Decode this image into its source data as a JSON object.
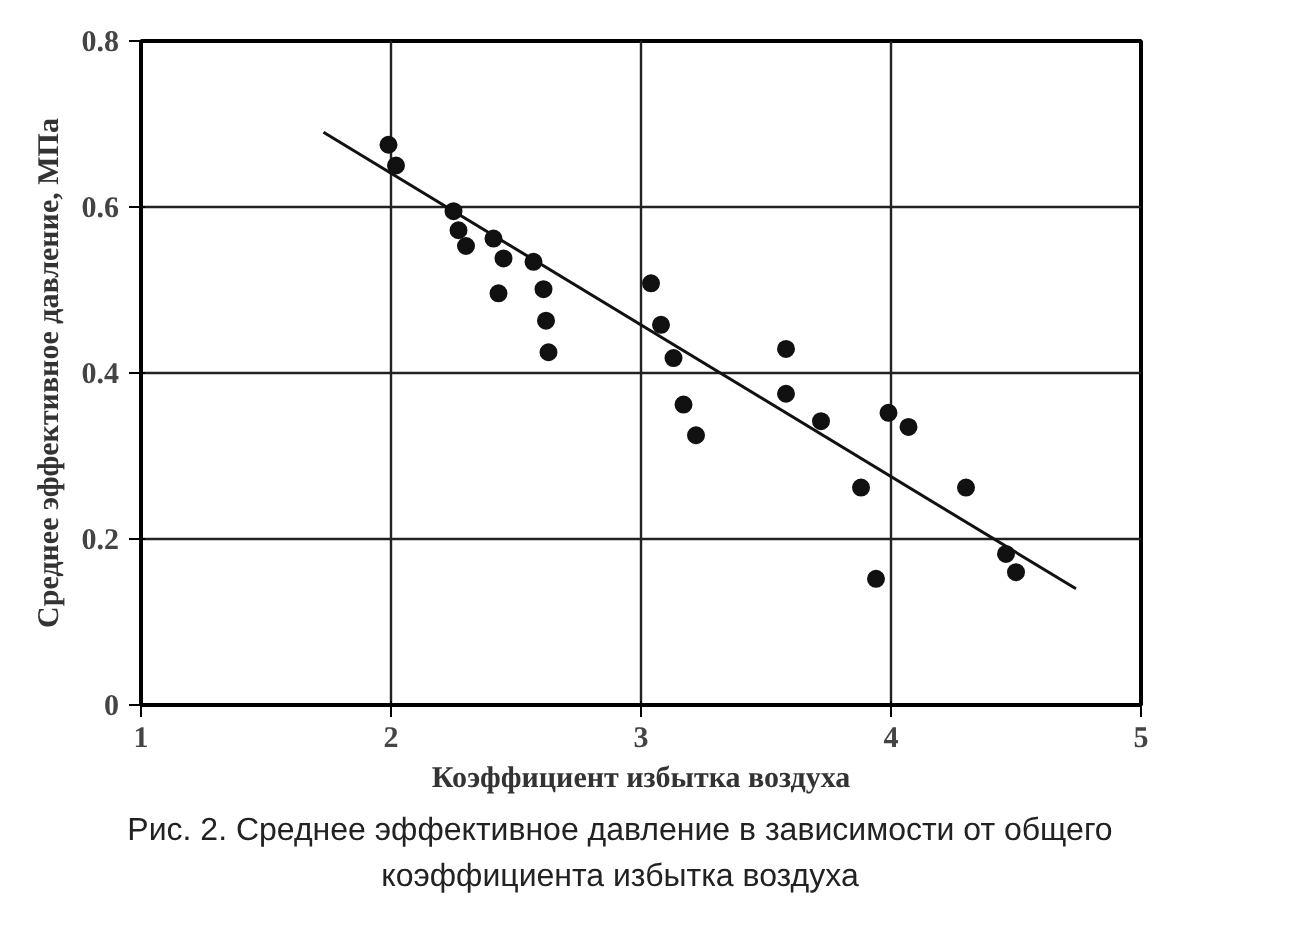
{
  "chart_data": {
    "type": "scatter",
    "xlabel": "Коэффициент избытка воздуха",
    "ylabel": "Среднее эффективное давление, МПа",
    "xlim": [
      1,
      5
    ],
    "ylim": [
      0,
      0.8
    ],
    "xticks": [
      1,
      2,
      3,
      4,
      5
    ],
    "yticks": [
      0,
      {
        "value": 0.2,
        "label": "0.2"
      },
      {
        "value": 0.4,
        "label": "0.4"
      },
      {
        "value": 0.6,
        "label": "0.6"
      },
      {
        "value": 0.8,
        "label": "0.8"
      }
    ],
    "grid": true,
    "series": [
      {
        "marker": "circle",
        "color": "#111111",
        "x": [
          1.99,
          2.02,
          2.25,
          2.27,
          2.3,
          2.41,
          2.45,
          2.43,
          2.57,
          2.61,
          2.62,
          2.63,
          3.04,
          3.08,
          3.13,
          3.17,
          3.22,
          3.58,
          3.58,
          3.72,
          3.88,
          3.94,
          3.99,
          4.07,
          4.3,
          4.46,
          4.5
        ],
        "values": [
          0.675,
          0.65,
          0.595,
          0.572,
          0.553,
          0.562,
          0.538,
          0.496,
          0.534,
          0.501,
          0.463,
          0.425,
          0.508,
          0.458,
          0.418,
          0.362,
          0.325,
          0.429,
          0.375,
          0.342,
          0.262,
          0.152,
          0.352,
          0.335,
          0.262,
          0.182,
          0.16
        ]
      },
      {
        "type": "line",
        "line_style": "solid",
        "color": "#111111",
        "x": [
          1.73,
          4.74
        ],
        "values": [
          0.69,
          0.14
        ]
      }
    ],
    "annotations": [
      "Рис. 2. Среднее эффективное давление в зависимости от общего коэффициента избытка воздуха"
    ]
  }
}
